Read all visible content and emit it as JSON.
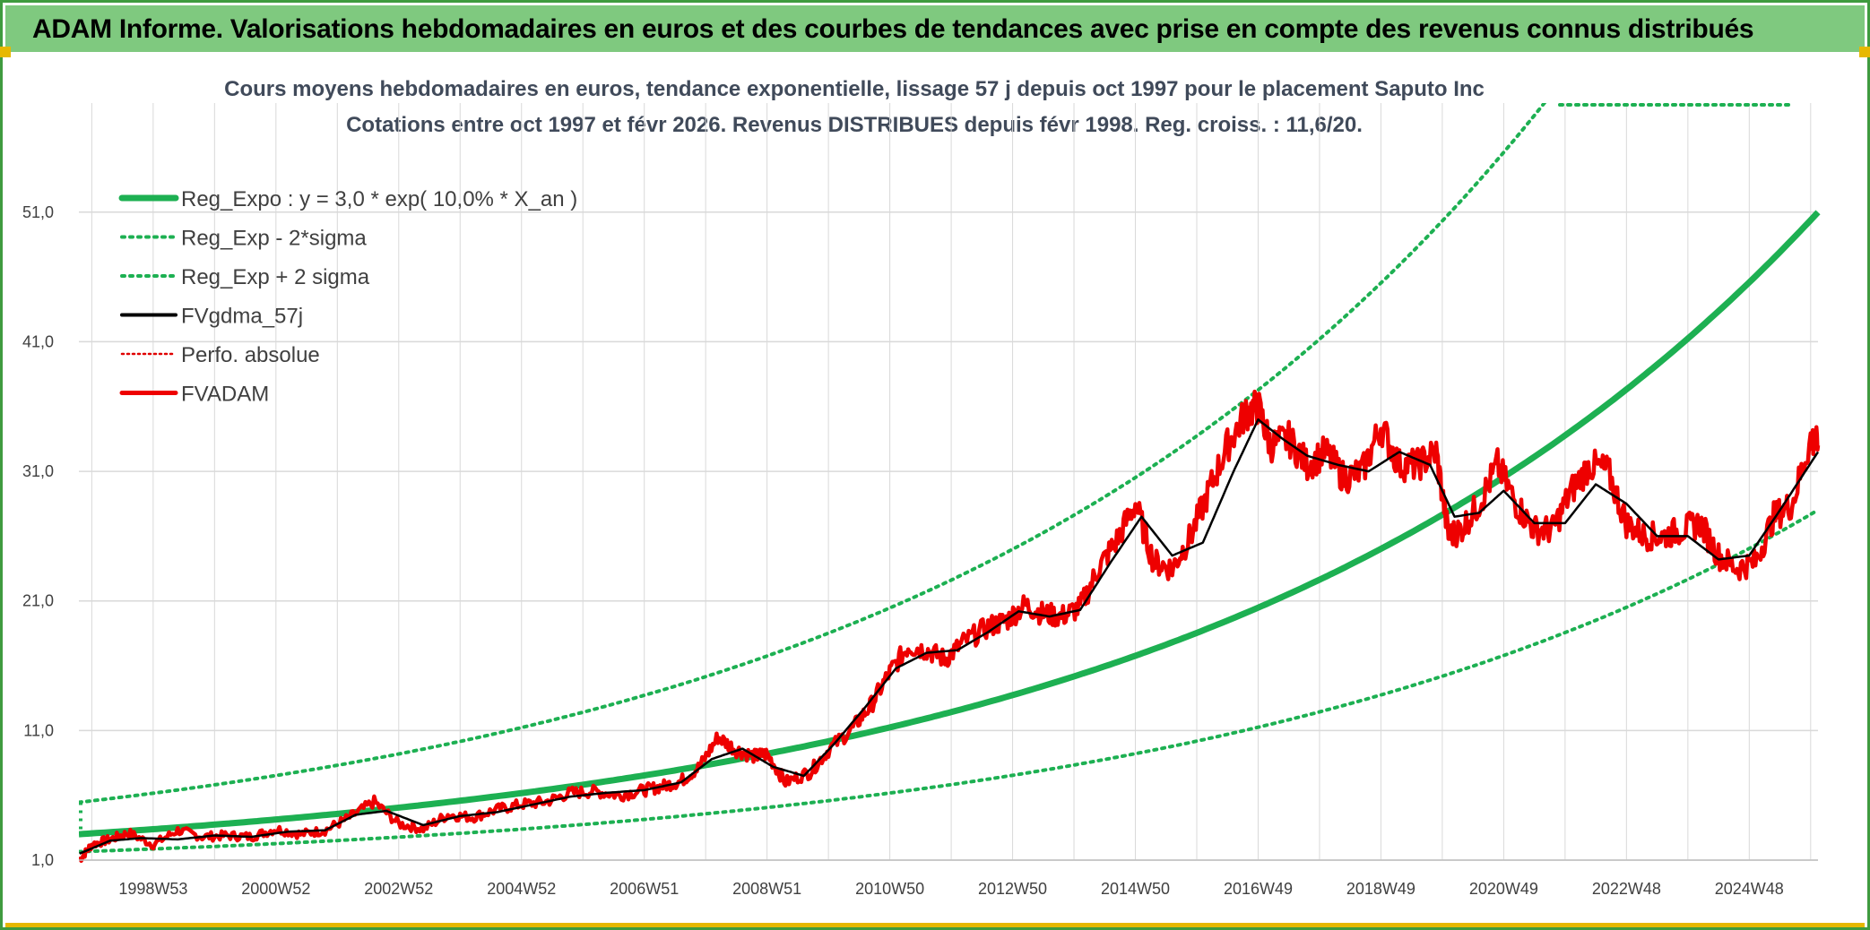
{
  "header": {
    "title": "ADAM Informe. Valorisations hebdomadaires en euros et des courbes de tendances avec prise en compte des revenus connus distribués"
  },
  "colors": {
    "title_bg": "#7fc97f",
    "frame": "#3f9b3f",
    "reg_expo": "#1db052",
    "sigma": "#1db052",
    "fvgdma": "#000000",
    "perfo": "#e00000",
    "fvadam": "#ee0000",
    "grid": "#d9d9d9"
  },
  "chart_data": {
    "type": "line",
    "title": "Cours moyens hebdomadaires en euros, tendance exponentielle, lissage 57 j depuis oct 1997 pour le placement Saputo Inc",
    "subtitle": "Cotations entre oct 1997 et févr 2026. Revenus DISTRIBUES depuis févr 1998. Reg. croiss. : 11,6/20.",
    "xlabel": "",
    "ylabel": "",
    "x_range_years": [
      1997.79,
      2026.12
    ],
    "ylim": [
      1.0,
      57.0
    ],
    "y_ticks": [
      1.0,
      11.0,
      21.0,
      31.0,
      41.0,
      51.0
    ],
    "y_tick_labels": [
      "1,0",
      "11,0",
      "21,0",
      "31,0",
      "41,0",
      "51,0"
    ],
    "x_tick_labels": [
      "1998W53",
      "2000W52",
      "2002W52",
      "2004W52",
      "2006W51",
      "2008W51",
      "2010W50",
      "2012W50",
      "2014W50",
      "2016W49",
      "2018W49",
      "2020W49",
      "2022W48",
      "2024W48"
    ],
    "x_tick_years": [
      1999.0,
      2001.0,
      2003.0,
      2005.0,
      2007.0,
      2009.0,
      2011.0,
      2013.0,
      2015.0,
      2017.0,
      2019.0,
      2021.0,
      2023.0,
      2025.0
    ],
    "legend": [
      {
        "label": "Reg_Expo : y = 3,0 * exp( 10,0% *  X_an )",
        "style": "solid-thick",
        "color": "#1db052"
      },
      {
        "label": "Reg_Exp - 2*sigma",
        "style": "dotted",
        "color": "#1db052"
      },
      {
        "label": "Reg_Exp + 2 sigma",
        "style": "dotted",
        "color": "#1db052"
      },
      {
        "label": "FVgdma_57j",
        "style": "solid",
        "color": "#000000"
      },
      {
        "label": "Perfo. absolue",
        "style": "dotted-thin",
        "color": "#e00000"
      },
      {
        "label": "FVADAM",
        "style": "solid-thick",
        "color": "#ee0000"
      }
    ],
    "series": [
      {
        "name": "Reg_Expo",
        "formula": "3.0*exp(0.10*(year-1997.79))"
      },
      {
        "name": "Reg_Exp - 2*sigma",
        "formula": "Reg_Expo/1.82"
      },
      {
        "name": "Reg_Exp + 2 sigma",
        "formula": "Reg_Expo*1.82"
      },
      {
        "name": "FVADAM",
        "x": [
          1997.8,
          1998.0,
          1998.3,
          1998.6,
          1999.0,
          1999.4,
          1999.8,
          2000.2,
          2000.6,
          2001.0,
          2001.4,
          2001.8,
          2002.2,
          2002.6,
          2003.0,
          2003.4,
          2003.8,
          2004.2,
          2004.6,
          2005.0,
          2005.4,
          2005.8,
          2006.2,
          2006.6,
          2007.0,
          2007.3,
          2007.6,
          2007.9,
          2008.2,
          2008.5,
          2008.8,
          2009.0,
          2009.3,
          2009.7,
          2010.0,
          2010.4,
          2010.7,
          2011.0,
          2011.3,
          2011.6,
          2011.9,
          2012.2,
          2012.6,
          2012.9,
          2013.2,
          2013.5,
          2013.8,
          2014.1,
          2014.4,
          2014.7,
          2015.0,
          2015.3,
          2015.6,
          2015.9,
          2016.2,
          2016.5,
          2016.8,
          2017.0,
          2017.2,
          2017.5,
          2017.8,
          2018.1,
          2018.4,
          2018.7,
          2019.0,
          2019.3,
          2019.6,
          2019.9,
          2020.1,
          2020.3,
          2020.6,
          2020.9,
          2021.2,
          2021.5,
          2021.8,
          2022.1,
          2022.4,
          2022.7,
          2023.0,
          2023.3,
          2023.6,
          2023.9,
          2024.2,
          2024.5,
          2024.8,
          2025.1,
          2025.4,
          2025.7,
          2026.0,
          2026.12
        ],
        "values": [
          1.0,
          2.2,
          2.6,
          3.1,
          2.2,
          3.3,
          2.8,
          2.9,
          2.8,
          3.4,
          3.0,
          3.3,
          4.3,
          5.5,
          3.8,
          3.4,
          4.5,
          4.3,
          4.9,
          5.3,
          5.5,
          6.2,
          6.3,
          6.0,
          6.4,
          6.7,
          7.1,
          8.2,
          10.5,
          9.5,
          9.0,
          9.2,
          7.0,
          7.8,
          9.5,
          11.2,
          13.0,
          15.5,
          17.5,
          17.2,
          16.5,
          17.8,
          19.0,
          19.5,
          20.7,
          20.0,
          19.8,
          20.5,
          23.5,
          25.7,
          28.5,
          24.0,
          23.5,
          26.0,
          29.5,
          33.0,
          35.5,
          36.0,
          33.0,
          33.5,
          31.5,
          32.5,
          30.5,
          31.0,
          34.5,
          31.5,
          31.5,
          32.5,
          26.0,
          26.5,
          28.5,
          31.5,
          28.5,
          26.5,
          26.5,
          29.5,
          31.5,
          31.0,
          27.0,
          26.0,
          26.0,
          26.5,
          27.0,
          24.5,
          23.5,
          24.0,
          27.5,
          28.5,
          33.5,
          33.0
        ]
      },
      {
        "name": "FVgdma_57j",
        "x": [
          1997.8,
          1998.3,
          1998.8,
          1999.4,
          2000.0,
          2000.6,
          2001.2,
          2001.8,
          2002.3,
          2002.8,
          2003.4,
          2004.0,
          2004.6,
          2005.2,
          2005.8,
          2006.4,
          2007.0,
          2007.6,
          2008.1,
          2008.6,
          2009.1,
          2009.6,
          2010.1,
          2010.6,
          2011.1,
          2011.6,
          2012.1,
          2012.6,
          2013.1,
          2013.6,
          2014.1,
          2014.6,
          2015.1,
          2015.6,
          2016.1,
          2016.6,
          2017.0,
          2017.4,
          2017.8,
          2018.3,
          2018.8,
          2019.3,
          2019.8,
          2020.2,
          2020.6,
          2021.0,
          2021.5,
          2022.0,
          2022.5,
          2023.0,
          2023.5,
          2024.0,
          2024.5,
          2025.0,
          2025.5,
          2026.12
        ],
        "values": [
          1.5,
          2.5,
          2.7,
          2.6,
          2.9,
          2.8,
          3.2,
          3.3,
          4.5,
          4.8,
          3.7,
          4.4,
          4.7,
          5.3,
          5.9,
          6.2,
          6.4,
          7.0,
          8.8,
          9.6,
          8.2,
          7.5,
          10.0,
          12.8,
          15.8,
          17.0,
          17.2,
          18.6,
          20.2,
          19.8,
          20.3,
          24.0,
          27.5,
          24.5,
          25.5,
          31.0,
          35.0,
          33.5,
          32.2,
          31.5,
          31.0,
          32.5,
          31.5,
          27.5,
          27.8,
          29.5,
          27.0,
          27.0,
          30.0,
          28.5,
          26.0,
          26.0,
          24.2,
          24.5,
          28.0,
          32.5
        ]
      }
    ]
  }
}
